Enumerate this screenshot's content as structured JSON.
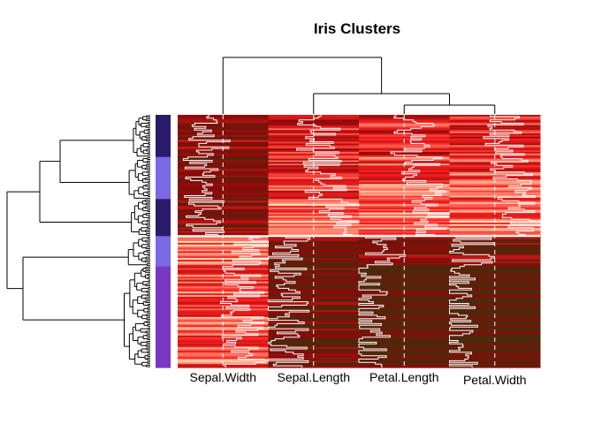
{
  "chart_data": {
    "type": "heatmap",
    "title": "Iris Clusters",
    "columns": [
      "Sepal.Width",
      "Sepal.Length",
      "Petal.Length",
      "Petal.Width"
    ],
    "column_dendrogram": "Sepal.Width joins last; Sepal.Length joins (Petal.Length, Petal.Width)",
    "row_dendrogram": "hierarchical clustering of 150 rows",
    "row_side_colors": [
      "#2b1b6b",
      "#7a68e4",
      "#7a38c0"
    ],
    "row_blocks": [
      {
        "rows": 25,
        "side": "#2b1b6b",
        "values": [
          0.35,
          0.55,
          0.6,
          0.58
        ]
      },
      {
        "rows": 25,
        "side": "#7a68e4",
        "values": [
          0.3,
          0.62,
          0.72,
          0.7
        ]
      },
      {
        "rows": 22,
        "side": "#2b1b6b",
        "values": [
          0.28,
          0.8,
          0.82,
          0.82
        ]
      },
      {
        "rows": 18,
        "side": "#7a68e4",
        "values": [
          0.85,
          0.25,
          0.28,
          0.25
        ]
      },
      {
        "rows": 60,
        "side": "#7a38c0",
        "values": [
          0.72,
          0.2,
          0.1,
          0.1
        ]
      }
    ],
    "color_scale": [
      "#4a2a0a",
      "#8b0a0a",
      "#ff2020",
      "#ffdcb4"
    ],
    "trace_lines": "white, per column"
  }
}
